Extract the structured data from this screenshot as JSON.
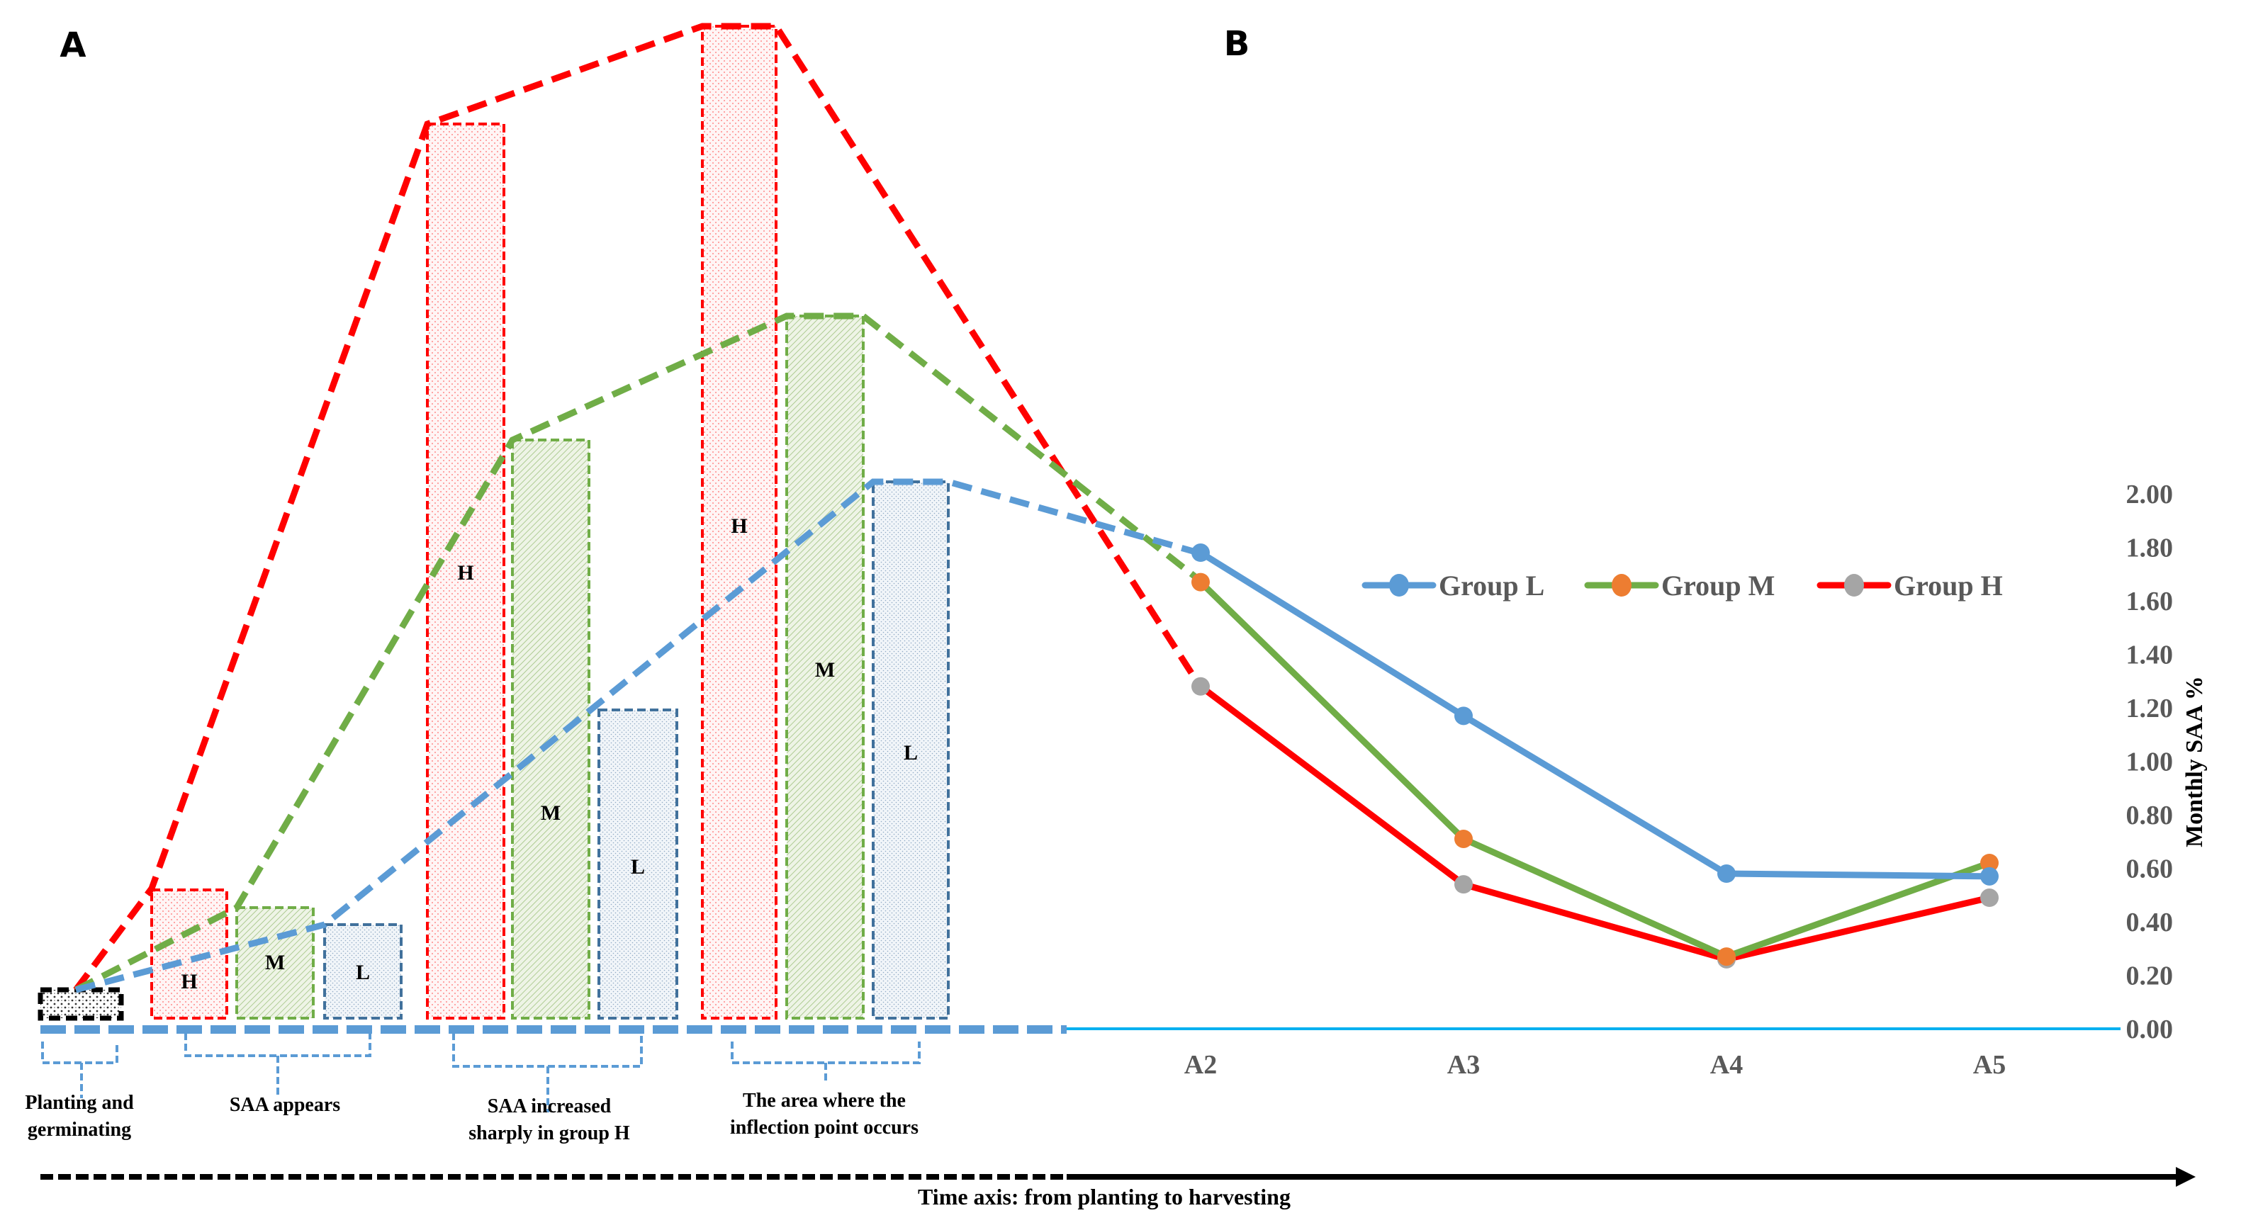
{
  "panels": {
    "a_label": "A",
    "b_label": "B"
  },
  "colors": {
    "group_l": "#5B9BD5",
    "group_m": "#70AD47",
    "group_h": "#FF0000",
    "marker_l": "#5B9BD5",
    "marker_m": "#ED7D31",
    "marker_h": "#A5A5A5",
    "baseline": "#00B0F0",
    "bar_l_border": "#41719C",
    "black": "#000000"
  },
  "panel_a": {
    "bar_labels": {
      "h": "H",
      "m": "M",
      "l": "L"
    },
    "stage_notes": [
      {
        "lines": [
          "Planting and",
          "germinating"
        ]
      },
      {
        "lines": [
          "SAA appears"
        ]
      },
      {
        "lines": [
          "SAA increased",
          "sharply in group H"
        ]
      },
      {
        "lines": [
          "The area where the",
          "inflection point occurs"
        ]
      }
    ],
    "time_axis_label": "Time axis: from planting to harvesting"
  },
  "chart_data": {
    "type": "line",
    "title": "",
    "xlabel": "",
    "ylabel": "Monthly SAA %",
    "categories": [
      "A2",
      "A3",
      "A4",
      "A5"
    ],
    "ylim": [
      0,
      2.0
    ],
    "yticks": [
      "0.00",
      "0.20",
      "0.40",
      "0.60",
      "0.80",
      "1.00",
      "1.20",
      "1.40",
      "1.60",
      "1.80",
      "2.00"
    ],
    "grid": false,
    "legend_position": "top-right",
    "series": [
      {
        "name": "Group L",
        "key": "l",
        "values": [
          1.78,
          1.17,
          0.58,
          0.57
        ]
      },
      {
        "name": "Group M",
        "key": "m",
        "values": [
          1.67,
          0.71,
          0.27,
          0.62
        ]
      },
      {
        "name": "Group H",
        "key": "h",
        "values": [
          1.28,
          0.54,
          0.26,
          0.49
        ]
      }
    ]
  }
}
